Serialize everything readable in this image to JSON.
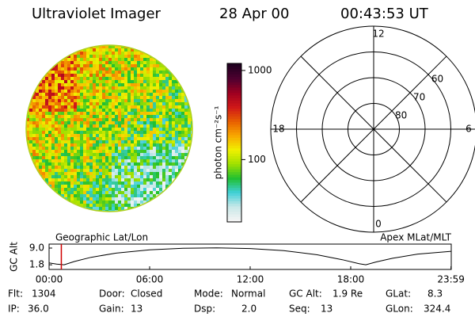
{
  "header": {
    "instrument": "Ultraviolet Imager",
    "date": "28 Apr 00",
    "time": "00:43:53 UT"
  },
  "colorbar": {
    "label": "photon cm⁻²s⁻¹",
    "scale": "log",
    "lim": [
      20,
      1200
    ],
    "ticks": [
      100,
      1000
    ],
    "colors": [
      "#f4f4f4",
      "#c8e8e8",
      "#40d0d8",
      "#20c030",
      "#a0e000",
      "#f0f000",
      "#f8a800",
      "#e86000",
      "#d01818",
      "#a00020",
      "#500030",
      "#200020"
    ]
  },
  "polar": {
    "lat_lim": [
      90,
      50
    ],
    "lat_ticks": [
      80,
      70,
      60
    ],
    "mlt_ticks": [
      12,
      18,
      6,
      0
    ]
  },
  "altitude": {
    "type": "line",
    "ylabel": "GC Alt",
    "left_label": "Geographic Lat/Lon",
    "right_label": "Apex MLat/MLT",
    "xlim": [
      0,
      24
    ],
    "xticks": [
      {
        "value": 0,
        "label": "00:00"
      },
      {
        "value": 6,
        "label": "06:00"
      },
      {
        "value": 12,
        "label": "12:00"
      },
      {
        "value": 18,
        "label": "18:00"
      },
      {
        "value": 23.983,
        "label": "23:59"
      }
    ],
    "ylim": [
      -0.2,
      10.7
    ],
    "yticks": [
      {
        "value": 9,
        "label": "9.0"
      },
      1.8
    ],
    "x": [
      0,
      0.45,
      0.9,
      1.5,
      2.5,
      4,
      6,
      8,
      10,
      12,
      14,
      16,
      17.5,
      18.5,
      18.9,
      19.5,
      20.5,
      22,
      24
    ],
    "values": [
      2.6,
      2.1,
      1.8,
      3.2,
      5.0,
      6.8,
      8.2,
      8.9,
      9.1,
      8.8,
      7.9,
      6.1,
      4.0,
      2.3,
      1.8,
      3.0,
      4.6,
      6.4,
      7.6
    ],
    "color": "#000000",
    "current_time": 0.731,
    "current_color": "#d00000"
  },
  "info": {
    "rows": [
      [
        [
          "Flt:",
          "1304"
        ],
        [
          "Door:",
          "Closed"
        ],
        [
          "Mode:",
          "Normal"
        ],
        [
          "GC Alt:",
          "1.9 Re"
        ],
        [
          "GLat:",
          "8.3"
        ]
      ],
      [
        [
          "IP:",
          "36.0"
        ],
        [
          "Gain:",
          "13"
        ],
        [
          "Dsp:",
          "2.0"
        ],
        [
          "Seq:",
          "13"
        ],
        [
          "GLon:",
          "324.4"
        ]
      ]
    ]
  }
}
